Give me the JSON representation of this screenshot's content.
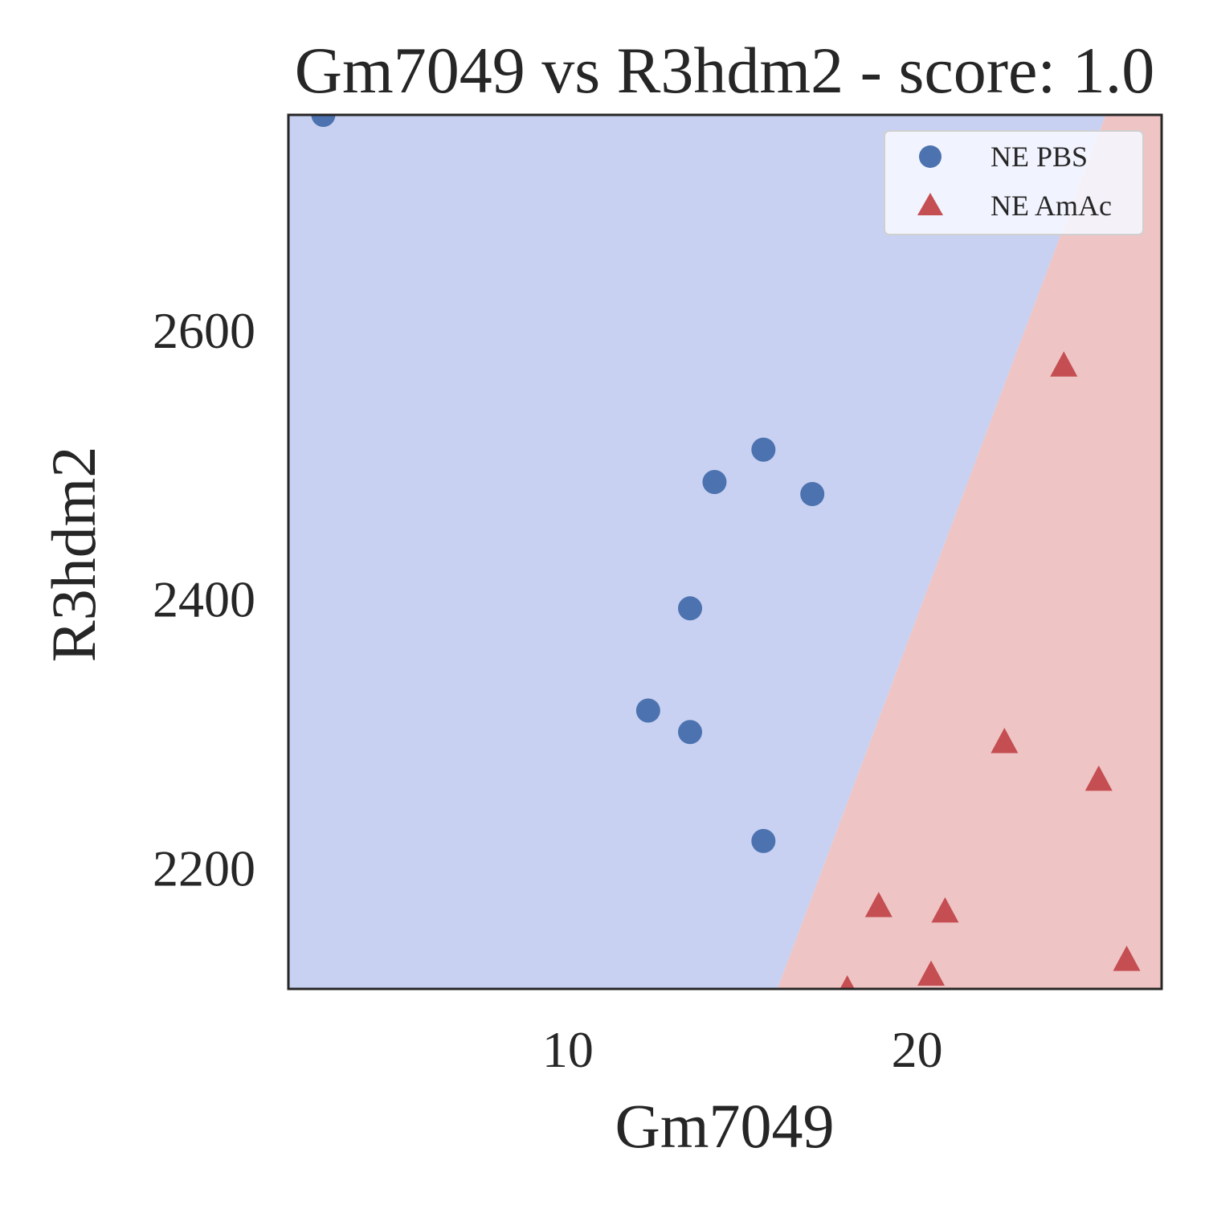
{
  "chart_data": {
    "type": "scatter",
    "title": "Gm7049 vs R3hdm2 - score: 1.0",
    "xlabel": "Gm7049",
    "ylabel": "R3hdm2",
    "xlim": [
      2.0,
      27.0
    ],
    "ylim": [
      2110,
      2760
    ],
    "xticks": [
      10,
      20
    ],
    "yticks": [
      2200,
      2400,
      2600
    ],
    "grid": false,
    "legend": {
      "placement": "top-right"
    },
    "decision_boundary": [
      [
        16.0,
        2110
      ],
      [
        25.4,
        2760
      ]
    ],
    "regions": [
      {
        "label": "NE PBS",
        "color": "#c8d1f1"
      },
      {
        "label": "NE AmAc",
        "color": "#efc4c4"
      }
    ],
    "series": [
      {
        "name": "NE PBS",
        "marker": "circle",
        "color": "#4c72b0",
        "points": [
          [
            3.0,
            2760
          ],
          [
            15.6,
            2511
          ],
          [
            14.2,
            2487
          ],
          [
            17.0,
            2478
          ],
          [
            13.5,
            2393
          ],
          [
            12.3,
            2317
          ],
          [
            13.5,
            2301
          ],
          [
            15.6,
            2220
          ]
        ]
      },
      {
        "name": "NE AmAc",
        "marker": "triangle",
        "color": "#c44e52",
        "points": [
          [
            24.2,
            2574
          ],
          [
            22.5,
            2294
          ],
          [
            25.2,
            2266
          ],
          [
            18.9,
            2172
          ],
          [
            20.8,
            2168
          ],
          [
            26.0,
            2132
          ],
          [
            20.4,
            2121
          ],
          [
            18.0,
            2110
          ]
        ]
      }
    ]
  }
}
